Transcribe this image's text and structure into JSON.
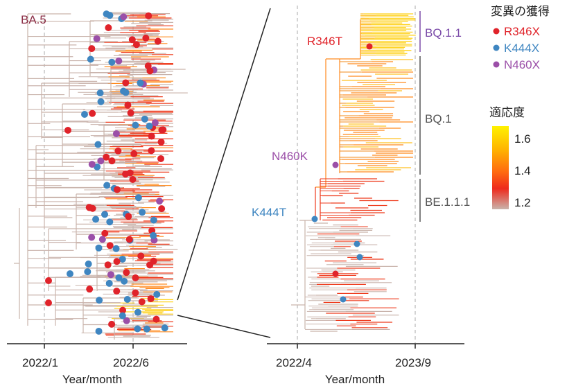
{
  "left_panel": {
    "lineage_label": "BA.5",
    "ticks": [
      "2022/1",
      "2022/6"
    ],
    "axis_label": "Year/month"
  },
  "right_panel": {
    "ticks": [
      "2022/4",
      "2023/9"
    ],
    "axis_label": "Year/month",
    "mutation_labels": {
      "r346": "R346T",
      "n460": "N460K",
      "k444": "K444T"
    },
    "clades": [
      "BQ.1.1",
      "BQ.1",
      "BE.1.1.1"
    ]
  },
  "legend": {
    "title": "変異の獲得",
    "items": [
      {
        "label": "R346X",
        "color": "#e0232a"
      },
      {
        "label": "K444X",
        "color": "#3f86c1"
      },
      {
        "label": "N460X",
        "color": "#9b4fa8"
      }
    ]
  },
  "fitness": {
    "title": "適応度",
    "ticks": [
      "1.6",
      "1.4",
      "1.2"
    ],
    "colors": {
      "low": "#c9b3ab",
      "mid": "#ee3a1c",
      "high": "#fff200"
    }
  },
  "colors": {
    "clade_bq11": "#7a4aa8",
    "clade_other": "#555555",
    "lineage_label": "#8c2f47",
    "axis": "#222222"
  }
}
